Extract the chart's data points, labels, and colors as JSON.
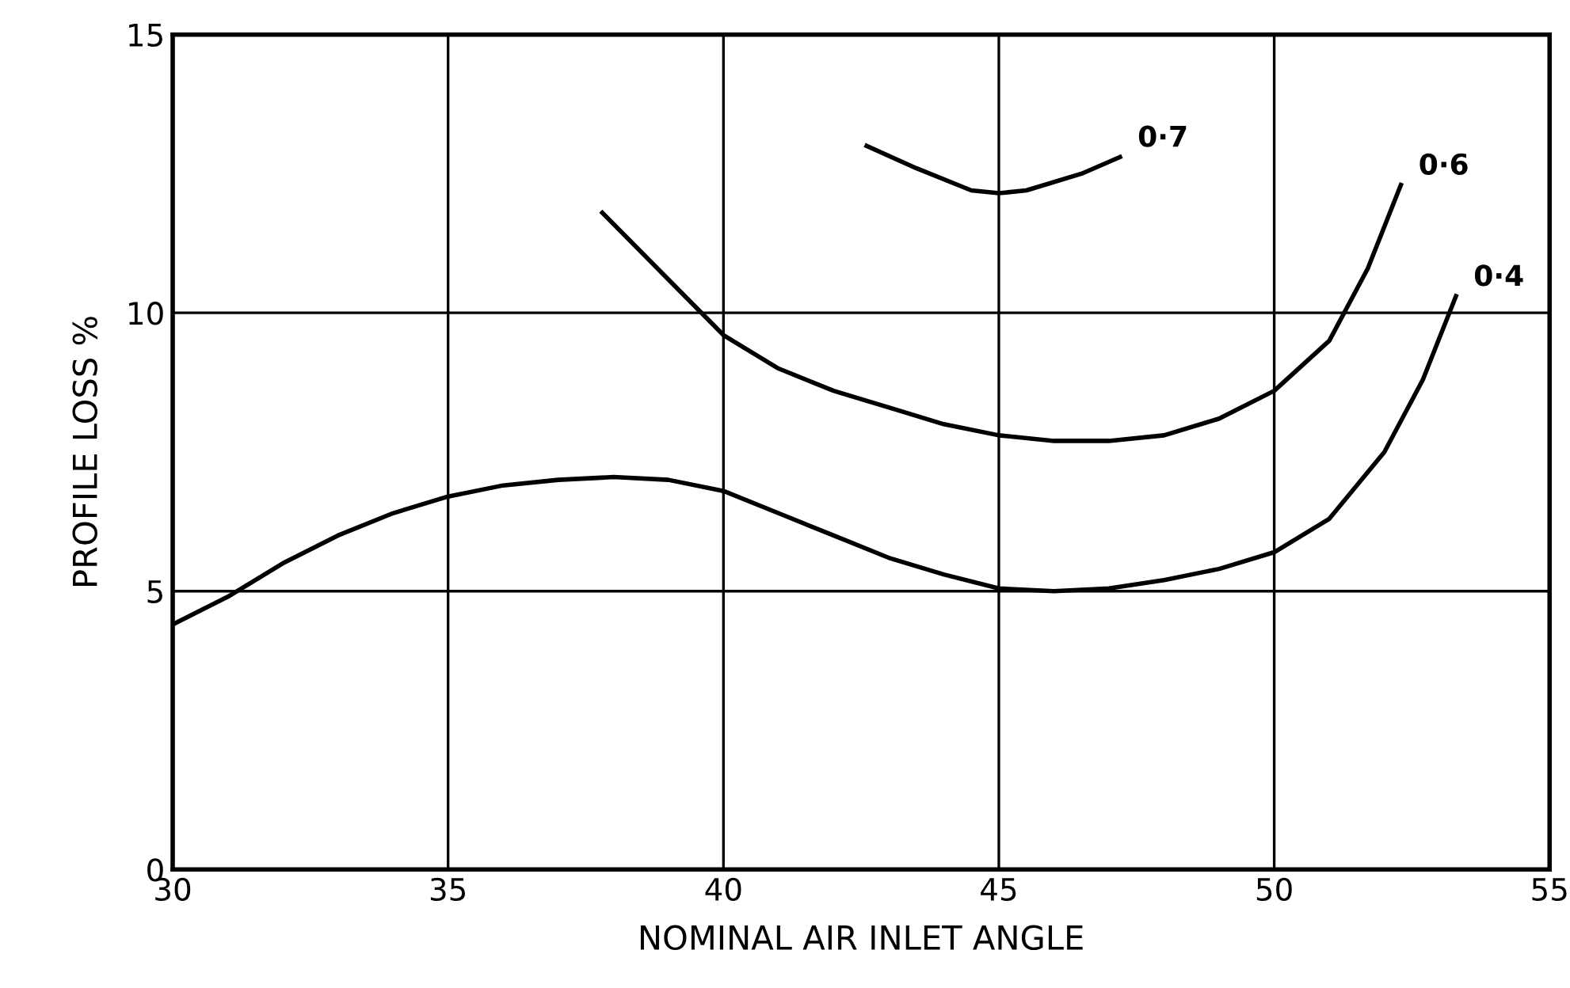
{
  "chart_data": {
    "type": "line",
    "xlabel": "NOMINAL AIR INLET ANGLE",
    "ylabel": "PROFILE LOSS %",
    "xlim": [
      30,
      55
    ],
    "ylim": [
      0,
      15
    ],
    "xticks": [
      30,
      35,
      40,
      45,
      50,
      55
    ],
    "yticks": [
      0,
      5,
      10,
      15
    ],
    "grid": true,
    "marker": "none",
    "line_style": "solid",
    "series": [
      {
        "name": "0·7",
        "color": "#000000",
        "x": [
          42.6,
          43.5,
          44.5,
          45,
          45.5,
          46.5,
          47.2
        ],
        "values": [
          13.0,
          12.6,
          12.2,
          12.15,
          12.2,
          12.5,
          12.8
        ]
      },
      {
        "name": "0·6",
        "color": "#000000",
        "x": [
          37.8,
          39,
          40,
          41,
          42,
          43,
          44,
          45,
          46,
          47,
          48,
          49,
          50,
          51,
          51.7,
          52.3
        ],
        "values": [
          11.8,
          10.6,
          9.6,
          9.0,
          8.6,
          8.3,
          8.0,
          7.8,
          7.7,
          7.7,
          7.8,
          8.1,
          8.6,
          9.5,
          10.8,
          12.3
        ]
      },
      {
        "name": "0·4",
        "color": "#000000",
        "x": [
          30,
          31,
          32,
          33,
          34,
          35,
          36,
          37,
          38,
          39,
          40,
          41,
          42,
          43,
          44,
          45,
          46,
          47,
          48,
          49,
          50,
          51,
          52,
          52.7,
          53.3
        ],
        "values": [
          4.4,
          4.9,
          5.5,
          6.0,
          6.4,
          6.7,
          6.9,
          7.0,
          7.05,
          7.0,
          6.8,
          6.4,
          6.0,
          5.6,
          5.3,
          5.05,
          5.0,
          5.05,
          5.2,
          5.4,
          5.7,
          6.3,
          7.5,
          8.8,
          10.3
        ]
      }
    ]
  }
}
